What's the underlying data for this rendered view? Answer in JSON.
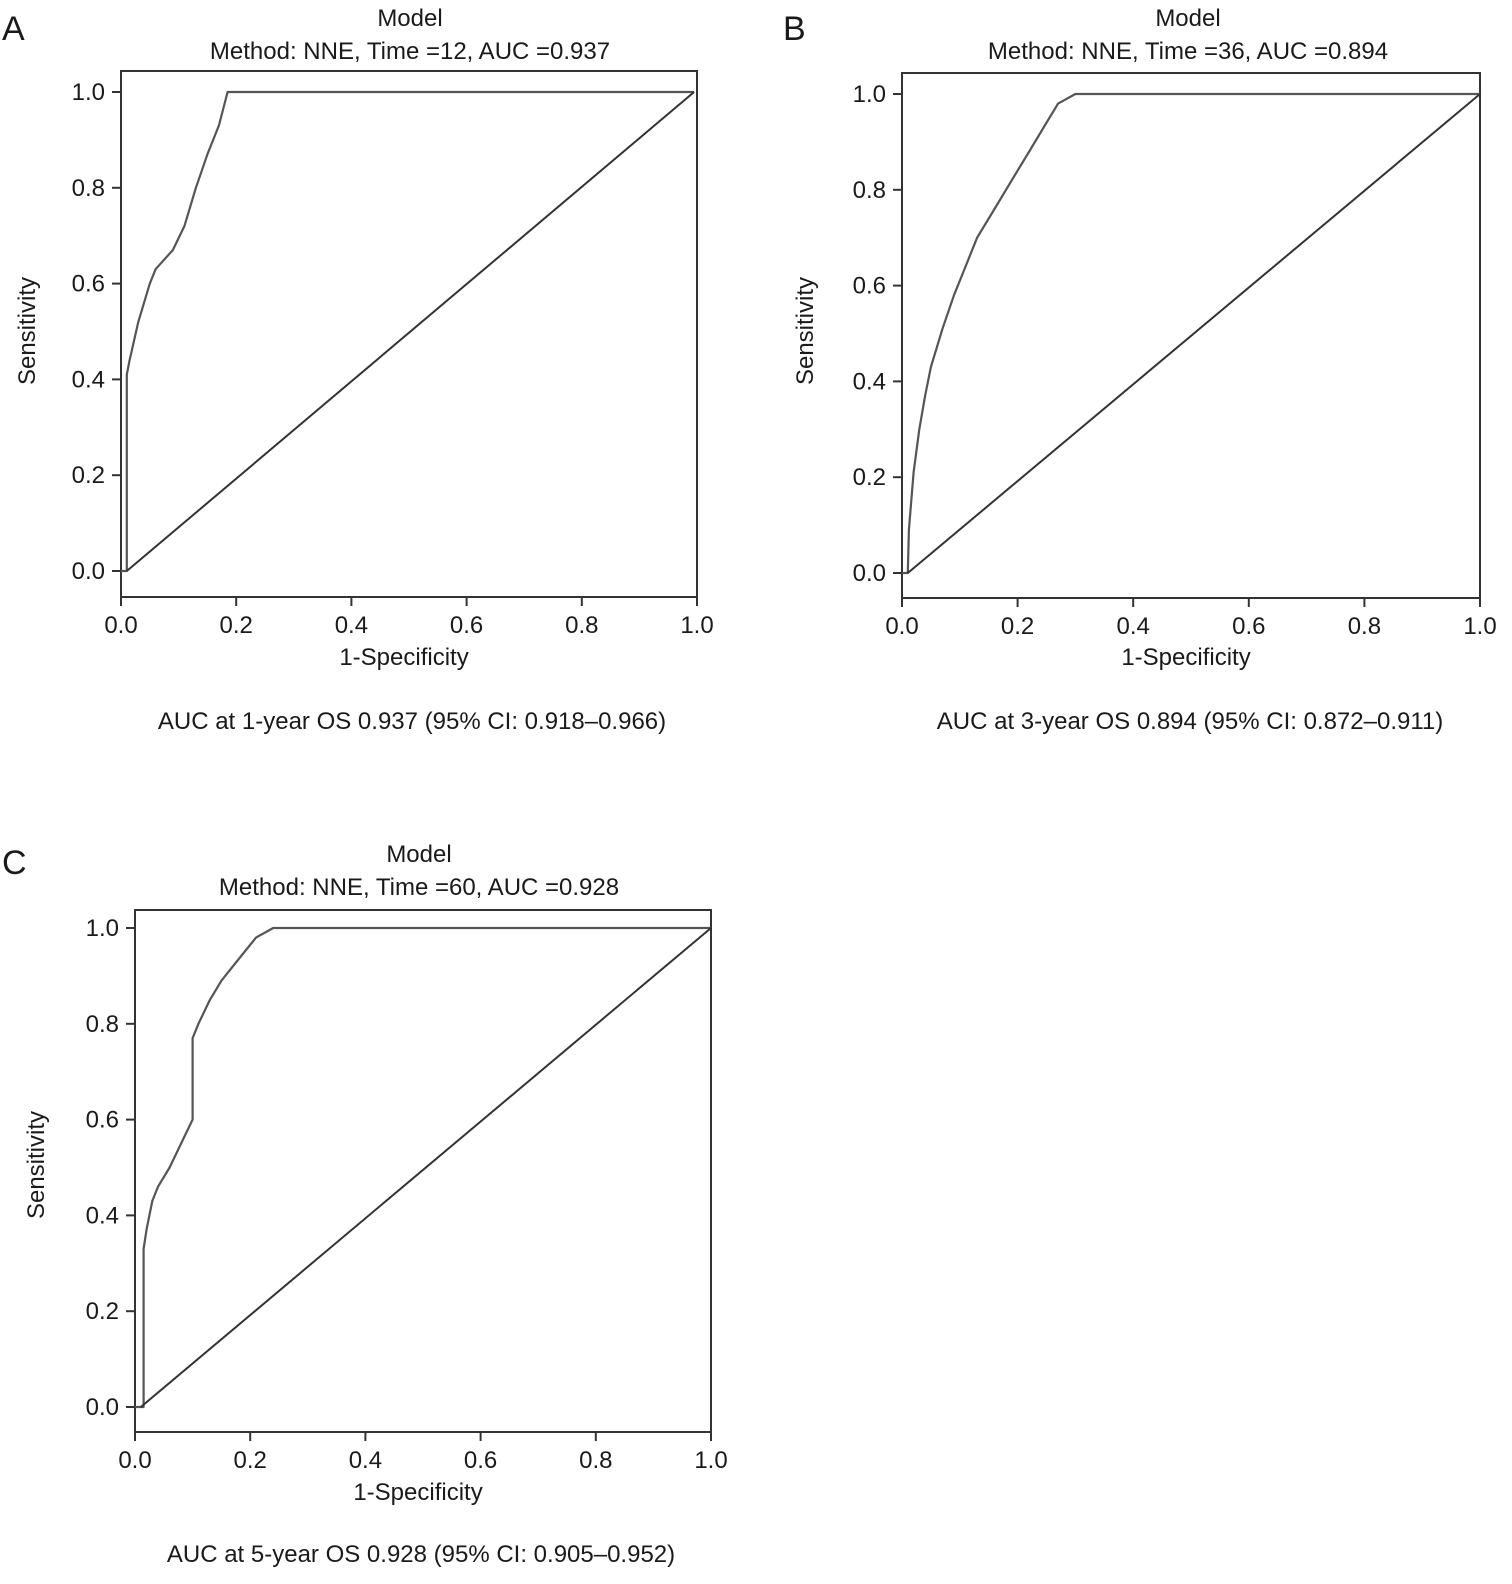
{
  "figure": {
    "panels": [
      {
        "letter": "A",
        "title_line1": "Model",
        "title_line2": "Method: NNE, Time =12, AUC =0.937",
        "caption": "AUC at 1-year OS 0.937 (95% CI: 0.918–0.966)"
      },
      {
        "letter": "B",
        "title_line1": "Model",
        "title_line2": "Method: NNE, Time =36, AUC =0.894",
        "caption": "AUC at 3-year OS 0.894 (95% CI: 0.872–0.911)"
      },
      {
        "letter": "C",
        "title_line1": "Model",
        "title_line2": "Method: NNE, Time =60, AUC =0.928",
        "caption": "AUC at 5-year OS 0.928 (95% CI: 0.905–0.952)"
      }
    ]
  },
  "chart_data": [
    {
      "type": "line",
      "title": "Model\nMethod: NNE, Time =12, AUC =0.937",
      "xlabel": "1-Specificity",
      "ylabel": "Sensitivity",
      "xlim": [
        0,
        1
      ],
      "ylim": [
        0,
        1
      ],
      "xticks": [
        "0.0",
        "0.2",
        "0.4",
        "0.6",
        "0.8",
        "1.0"
      ],
      "yticks": [
        "0.0",
        "0.2",
        "0.4",
        "0.6",
        "0.8",
        "1.0"
      ],
      "grid": false,
      "series": [
        {
          "x": [
            0.0,
            0.01,
            0.01,
            0.015,
            0.03,
            0.05,
            0.06,
            0.09,
            0.11,
            0.13,
            0.15,
            0.17,
            0.185,
            0.3,
            0.5,
            0.8,
            0.995
          ],
          "y": [
            0.0,
            0.0,
            0.41,
            0.44,
            0.52,
            0.6,
            0.63,
            0.67,
            0.72,
            0.8,
            0.87,
            0.93,
            1.0,
            1.0,
            1.0,
            1.0,
            1.0
          ]
        },
        {
          "x": [
            0.01,
            0.995
          ],
          "y": [
            0.0,
            1.0
          ]
        }
      ]
    },
    {
      "type": "line",
      "title": "Model\nMethod: NNE, Time =36, AUC =0.894",
      "xlabel": "1-Specificity",
      "ylabel": "Sensitivity",
      "xlim": [
        0,
        1
      ],
      "ylim": [
        0,
        1
      ],
      "xticks": [
        "0.0",
        "0.2",
        "0.4",
        "0.6",
        "0.8",
        "1.0"
      ],
      "yticks": [
        "0.0",
        "0.2",
        "0.4",
        "0.6",
        "0.8",
        "1.0"
      ],
      "grid": false,
      "series": [
        {
          "x": [
            0.0,
            0.01,
            0.012,
            0.02,
            0.03,
            0.04,
            0.05,
            0.07,
            0.09,
            0.11,
            0.13,
            0.16,
            0.19,
            0.22,
            0.245,
            0.27,
            0.3,
            0.5,
            0.8,
            1.0
          ],
          "y": [
            0.0,
            0.0,
            0.09,
            0.21,
            0.3,
            0.37,
            0.43,
            0.51,
            0.58,
            0.64,
            0.7,
            0.76,
            0.82,
            0.88,
            0.93,
            0.98,
            1.0,
            1.0,
            1.0,
            1.0
          ]
        },
        {
          "x": [
            0.01,
            1.0
          ],
          "y": [
            0.0,
            1.0
          ]
        }
      ]
    },
    {
      "type": "line",
      "title": "Model\nMethod: NNE, Time =60, AUC =0.928",
      "xlabel": "1-Specificity",
      "ylabel": "Sensitivity",
      "xlim": [
        0,
        1
      ],
      "ylim": [
        0,
        1
      ],
      "xticks": [
        "0.0",
        "0.2",
        "0.4",
        "0.6",
        "0.8",
        "1.0"
      ],
      "yticks": [
        "0.0",
        "0.2",
        "0.4",
        "0.6",
        "0.8",
        "1.0"
      ],
      "grid": false,
      "series": [
        {
          "x": [
            0.0,
            0.015,
            0.015,
            0.02,
            0.03,
            0.04,
            0.06,
            0.08,
            0.1,
            0.1,
            0.11,
            0.13,
            0.15,
            0.17,
            0.19,
            0.21,
            0.24,
            0.4,
            0.6,
            0.8,
            1.0
          ],
          "y": [
            0.0,
            0.0,
            0.33,
            0.37,
            0.43,
            0.46,
            0.5,
            0.55,
            0.6,
            0.77,
            0.8,
            0.85,
            0.89,
            0.92,
            0.95,
            0.98,
            1.0,
            1.0,
            1.0,
            1.0,
            1.0
          ]
        },
        {
          "x": [
            0.01,
            1.0
          ],
          "y": [
            0.0,
            1.0
          ]
        }
      ]
    }
  ]
}
